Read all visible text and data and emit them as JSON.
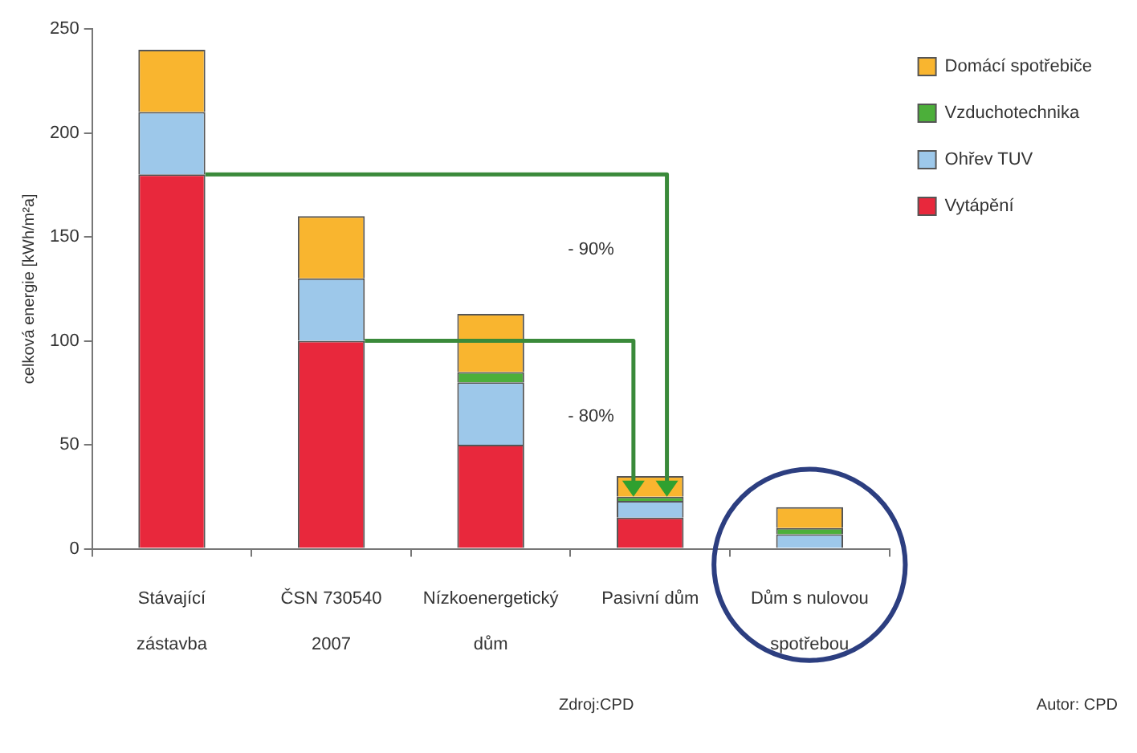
{
  "chart_data": {
    "type": "bar",
    "stacked": true,
    "ylabel": "celková energie [kWh/m²a]",
    "categories": [
      "Stávající zástavba",
      "ČSN 730540 2007",
      "Nízkoenergetický dům",
      "Pasivní dům",
      "Dům s nulovou spotřebou"
    ],
    "series": [
      {
        "name": "Vytápění",
        "color": "#e8283c",
        "values": [
          180,
          100,
          50,
          15,
          0
        ]
      },
      {
        "name": "Ohřev TUV",
        "color": "#9dc8ea",
        "values": [
          30,
          30,
          30,
          8,
          7
        ]
      },
      {
        "name": "Vzduchotechnika",
        "color": "#4caf3a",
        "values": [
          0,
          0,
          5,
          2,
          3
        ]
      },
      {
        "name": "Domácí spotřebiče",
        "color": "#f9b52f",
        "values": [
          30,
          30,
          28,
          10,
          10
        ]
      }
    ],
    "ylim": [
      0,
      250
    ],
    "yticks": [
      0,
      50,
      100,
      150,
      200,
      250
    ],
    "grid": false,
    "legend": "right",
    "annotations": [
      "- 90%",
      "- 80%",
      "Zdroj:CPD",
      "Autor: CPD"
    ]
  }
}
